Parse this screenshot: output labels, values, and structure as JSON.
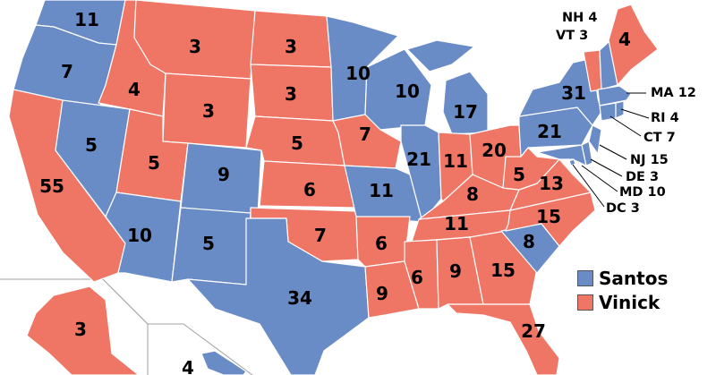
{
  "candidates": {
    "santos": {
      "name": "Santos",
      "color": "#6a8cc6"
    },
    "vinick": {
      "name": "Vinick",
      "color": "#ef7565"
    }
  },
  "legend": [
    {
      "key": "santos",
      "label": "Santos",
      "color": "#6a8cc6"
    },
    {
      "key": "vinick",
      "label": "Vinick",
      "color": "#ef7565"
    }
  ],
  "states": {
    "WA": {
      "ev": "11",
      "winner": "santos"
    },
    "OR": {
      "ev": "7",
      "winner": "santos"
    },
    "CA": {
      "ev": "55",
      "winner": "vinick"
    },
    "NV": {
      "ev": "5",
      "winner": "santos"
    },
    "ID": {
      "ev": "4",
      "winner": "vinick"
    },
    "MT": {
      "ev": "3",
      "winner": "vinick"
    },
    "WY": {
      "ev": "3",
      "winner": "vinick"
    },
    "UT": {
      "ev": "5",
      "winner": "vinick"
    },
    "AZ": {
      "ev": "10",
      "winner": "santos"
    },
    "NM": {
      "ev": "5",
      "winner": "santos"
    },
    "CO": {
      "ev": "9",
      "winner": "santos"
    },
    "ND": {
      "ev": "3",
      "winner": "vinick"
    },
    "SD": {
      "ev": "3",
      "winner": "vinick"
    },
    "NE": {
      "ev": "5",
      "winner": "vinick"
    },
    "KS": {
      "ev": "6",
      "winner": "vinick"
    },
    "OK": {
      "ev": "7",
      "winner": "vinick"
    },
    "TX": {
      "ev": "34",
      "winner": "santos"
    },
    "MN": {
      "ev": "10",
      "winner": "santos"
    },
    "IA": {
      "ev": "7",
      "winner": "vinick"
    },
    "MO": {
      "ev": "11",
      "winner": "santos"
    },
    "AR": {
      "ev": "6",
      "winner": "vinick"
    },
    "LA": {
      "ev": "9",
      "winner": "vinick"
    },
    "WI": {
      "ev": "10",
      "winner": "santos"
    },
    "IL": {
      "ev": "21",
      "winner": "santos"
    },
    "MI": {
      "ev": "17",
      "winner": "santos"
    },
    "IN": {
      "ev": "11",
      "winner": "vinick"
    },
    "OH": {
      "ev": "20",
      "winner": "vinick"
    },
    "KY": {
      "ev": "8",
      "winner": "vinick"
    },
    "TN": {
      "ev": "11",
      "winner": "vinick"
    },
    "MS": {
      "ev": "6",
      "winner": "vinick"
    },
    "AL": {
      "ev": "9",
      "winner": "vinick"
    },
    "GA": {
      "ev": "15",
      "winner": "vinick"
    },
    "FL": {
      "ev": "27",
      "winner": "vinick"
    },
    "SC": {
      "ev": "8",
      "winner": "santos"
    },
    "NC": {
      "ev": "15",
      "winner": "vinick"
    },
    "VA": {
      "ev": "13",
      "winner": "vinick"
    },
    "WV": {
      "ev": "5",
      "winner": "vinick"
    },
    "PA": {
      "ev": "21",
      "winner": "santos"
    },
    "NY": {
      "ev": "31",
      "winner": "santos"
    },
    "ME": {
      "ev": "4",
      "winner": "vinick"
    },
    "AK": {
      "ev": "3",
      "winner": "vinick"
    },
    "HI": {
      "ev": "4",
      "winner": "santos"
    }
  },
  "small_states": {
    "NH": {
      "label": "NH 4",
      "winner": "santos"
    },
    "VT": {
      "label": "VT 3",
      "winner": "vinick"
    },
    "MA": {
      "label": "MA 12",
      "winner": "santos"
    },
    "RI": {
      "label": "RI 4",
      "winner": "santos"
    },
    "CT": {
      "label": "CT 7",
      "winner": "santos"
    },
    "NJ": {
      "label": "NJ 15",
      "winner": "santos"
    },
    "DE": {
      "label": "DE 3",
      "winner": "santos"
    },
    "MD": {
      "label": "MD 10",
      "winner": "santos"
    },
    "DC": {
      "label": "DC 3",
      "winner": "santos"
    }
  }
}
